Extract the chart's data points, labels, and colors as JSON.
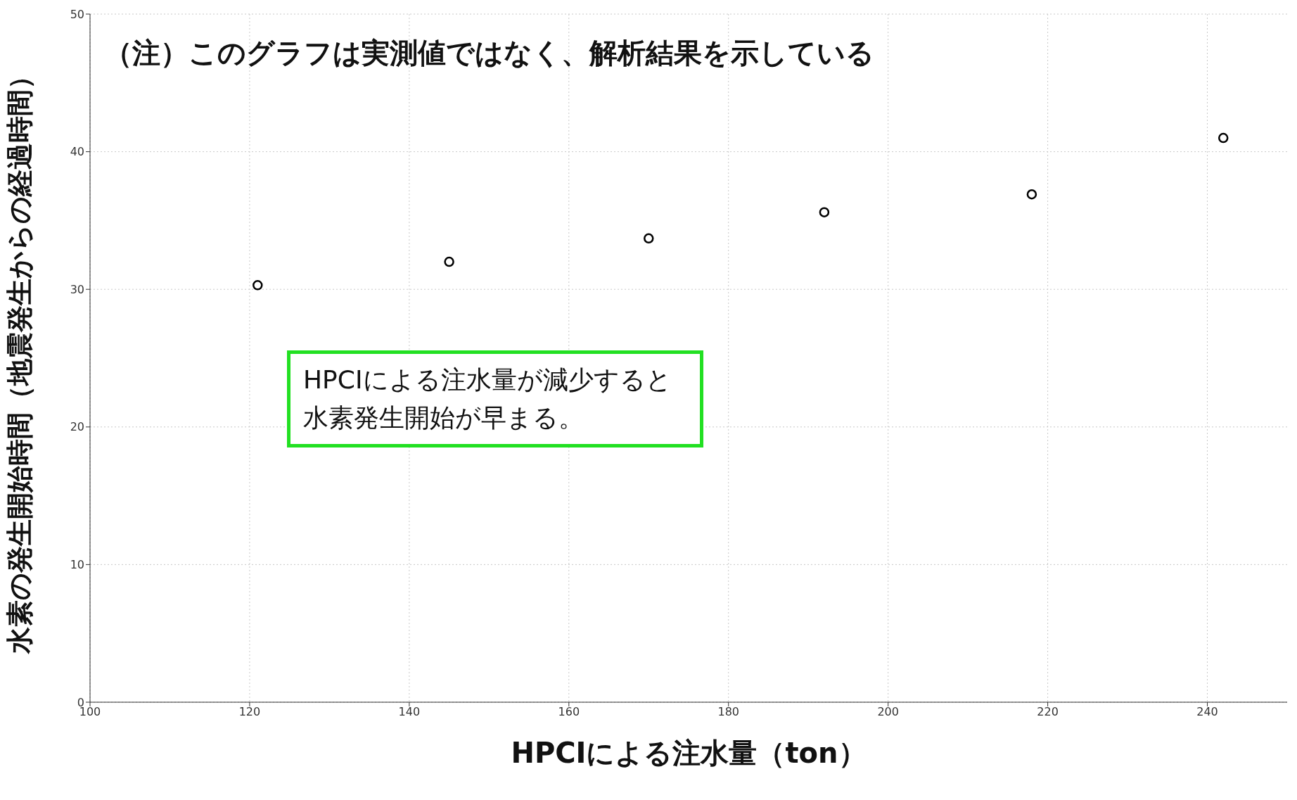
{
  "chart_data": {
    "type": "scatter",
    "xlabel": "HPCIによる注水量（ton）",
    "ylabel": "水素の発生開始時間（地震発生からの経過時間）",
    "annotations": [
      "（注）このグラフは実測値ではなく、解析結果を示している",
      "HPCIによる注水量が減少すると水素発生開始が早まる。"
    ],
    "x": [
      121,
      145,
      170,
      192,
      218,
      242
    ],
    "series": [
      {
        "color": "#000000",
        "values": [
          30.3,
          32.0,
          33.7,
          35.6,
          36.9,
          41.0
        ]
      }
    ],
    "xlim": [
      100,
      250
    ],
    "xticks": [
      100,
      120,
      140,
      160,
      180,
      200,
      220,
      240
    ],
    "ylim": [
      0,
      50
    ],
    "yticks": [
      0,
      10,
      20,
      30,
      40,
      50
    ],
    "grid": true,
    "marker": "circle",
    "legend": false
  }
}
